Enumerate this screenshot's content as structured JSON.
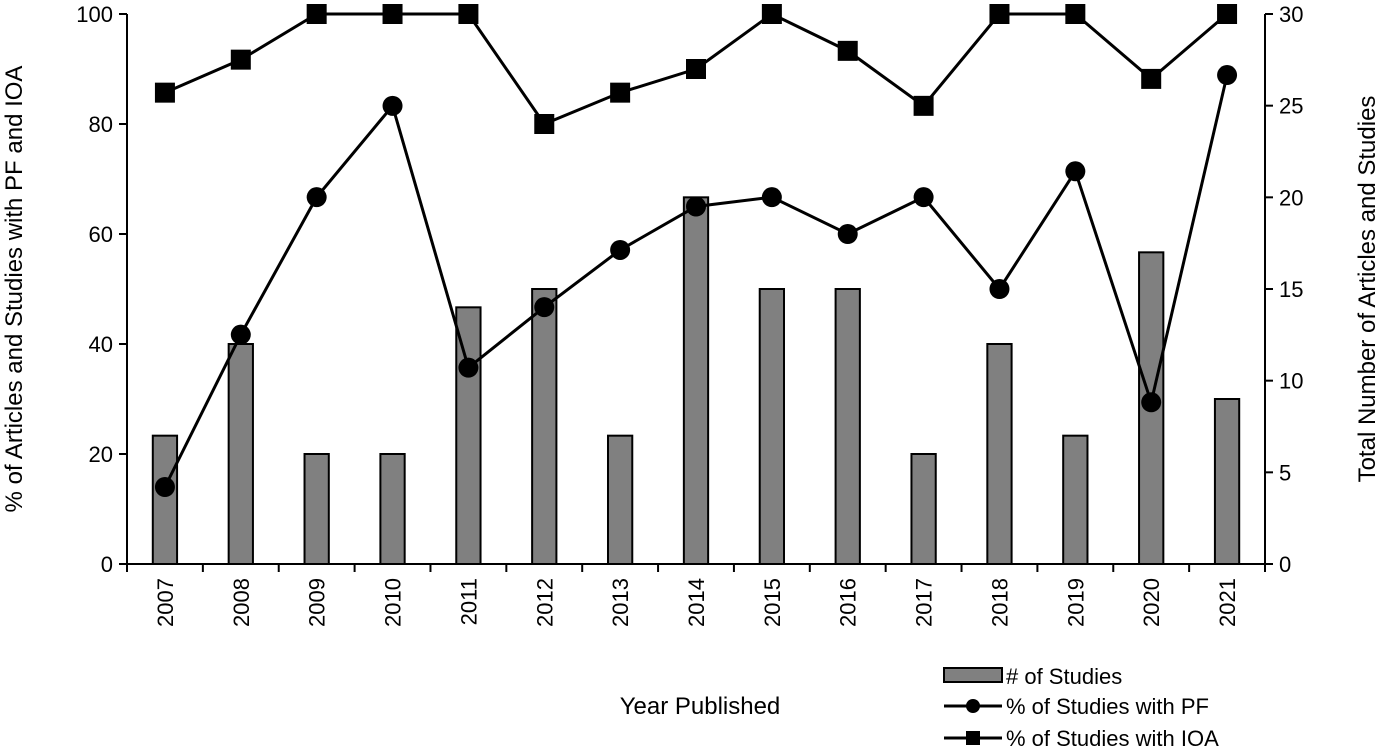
{
  "chart_data": {
    "type": "bar",
    "categories": [
      "2007",
      "2008",
      "2009",
      "2010",
      "2011",
      "2012",
      "2013",
      "2014",
      "2015",
      "2016",
      "2017",
      "2018",
      "2019",
      "2020",
      "2021"
    ],
    "xlabel": "Year Published",
    "ylabel_left": "% of Articles and Studies with PF and IOA",
    "ylabel_right": "Total Number  of Articles and Studies",
    "ylim_left": [
      0,
      100
    ],
    "ylim_right": [
      0,
      30
    ],
    "yticks_left": [
      0,
      20,
      40,
      60,
      80,
      100
    ],
    "yticks_right": [
      0,
      5,
      10,
      15,
      20,
      25,
      30
    ],
    "grid": false,
    "legend_position": "bottom-right",
    "series": [
      {
        "name": "# of Studies",
        "type": "bar",
        "axis": "right",
        "color": "#808080",
        "values": [
          7,
          12,
          6,
          6,
          14,
          15,
          7,
          20,
          15,
          15,
          6,
          12,
          7,
          17,
          9
        ]
      },
      {
        "name": "% of Studies with PF",
        "type": "line",
        "axis": "left",
        "marker": "circle",
        "color": "#000000",
        "values": [
          14,
          41.7,
          66.7,
          83.3,
          35.7,
          46.7,
          57.1,
          65,
          66.7,
          60,
          66.7,
          50,
          71.4,
          29.4,
          88.9
        ]
      },
      {
        "name": "% of Studies with IOA",
        "type": "line",
        "axis": "left",
        "marker": "square",
        "color": "#000000",
        "values": [
          85.7,
          91.7,
          100,
          100,
          100,
          80,
          85.7,
          90,
          100,
          93.3,
          83.3,
          100,
          100,
          88.2,
          100
        ]
      }
    ]
  }
}
